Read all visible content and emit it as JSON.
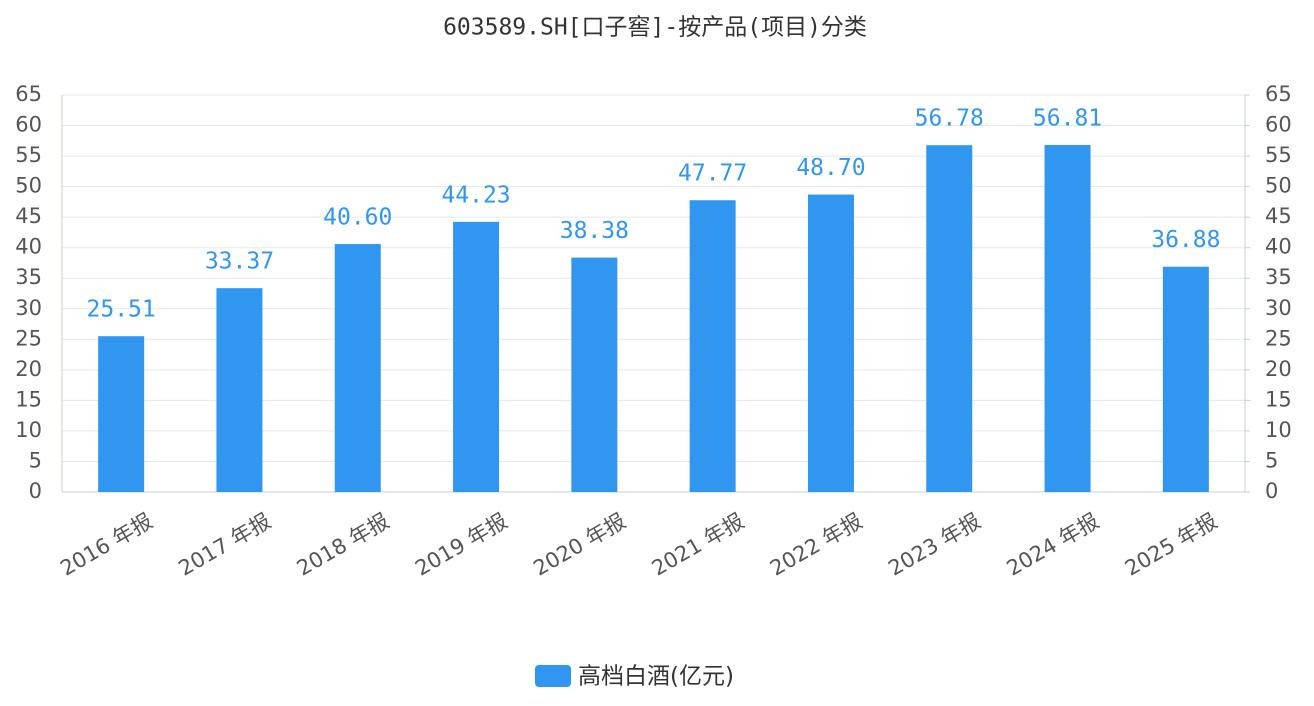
{
  "chart_data": {
    "type": "bar",
    "title": "603589.SH[口子窖]-按产品(项目)分类",
    "categories": [
      "2016 年报",
      "2017 年报",
      "2018 年报",
      "2019 年报",
      "2020 年报",
      "2021 年报",
      "2022 年报",
      "2023 年报",
      "2024 年报",
      "2025 年报"
    ],
    "series": [
      {
        "name": "高档白酒(亿元)",
        "color": "#3196ef",
        "values": [
          25.51,
          33.37,
          40.6,
          44.23,
          38.38,
          47.77,
          48.7,
          56.78,
          56.81,
          36.88
        ],
        "value_labels": [
          "25.51",
          "33.37",
          "40.60",
          "44.23",
          "38.38",
          "47.77",
          "48.70",
          "56.78",
          "56.81",
          "36.88"
        ]
      }
    ],
    "ylim": [
      0,
      65
    ],
    "yticks": [
      0,
      5,
      10,
      15,
      20,
      25,
      30,
      35,
      40,
      45,
      50,
      55,
      60,
      65
    ],
    "y2lim": [
      0,
      65
    ],
    "y2ticks": [
      0,
      5,
      10,
      15,
      20,
      25,
      30,
      35,
      40,
      45,
      50,
      55,
      60,
      65
    ],
    "grid": true,
    "legend": "bottom"
  }
}
